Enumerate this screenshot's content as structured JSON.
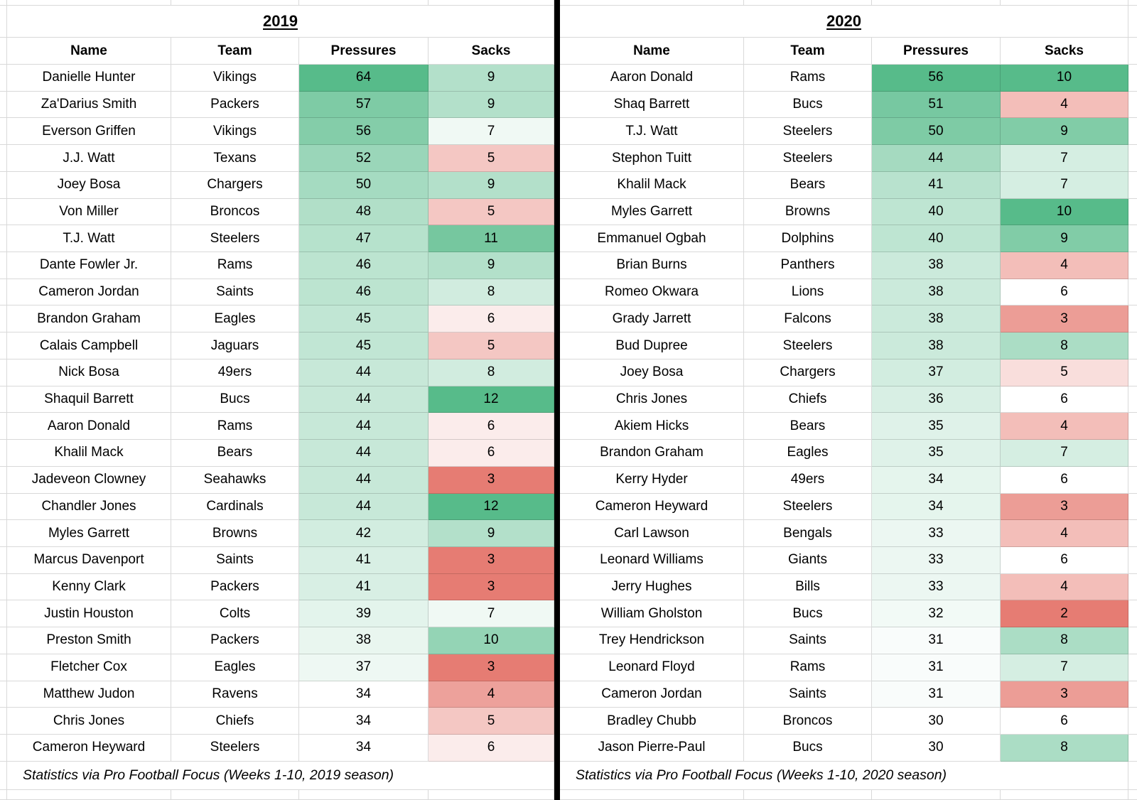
{
  "colors": {
    "scale_green": "#57BB8A",
    "scale_red": "#E67C73",
    "scale_neutral": "#FFFFFF",
    "gridline": "#D9D9D9",
    "divider": "#000000",
    "text": "#000000",
    "background": "#FFFFFF"
  },
  "tables": {
    "left": {
      "title": "2019",
      "columns": [
        "Name",
        "Team",
        "Pressures",
        "Sacks"
      ],
      "footnote": "Statistics via Pro Football Focus (Weeks 1-10, 2019 season)",
      "scales": {
        "pressures": {
          "type": "two_color",
          "min": 34,
          "max": 64
        },
        "sacks": {
          "type": "three_color",
          "min": 3,
          "mid": 6.5,
          "max": 12
        }
      },
      "rows": [
        {
          "name": "Danielle Hunter",
          "team": "Vikings",
          "pressures": 64,
          "sacks": 9
        },
        {
          "name": "Za'Darius Smith",
          "team": "Packers",
          "pressures": 57,
          "sacks": 9
        },
        {
          "name": "Everson Griffen",
          "team": "Vikings",
          "pressures": 56,
          "sacks": 7
        },
        {
          "name": "J.J. Watt",
          "team": "Texans",
          "pressures": 52,
          "sacks": 5
        },
        {
          "name": "Joey Bosa",
          "team": "Chargers",
          "pressures": 50,
          "sacks": 9
        },
        {
          "name": "Von Miller",
          "team": "Broncos",
          "pressures": 48,
          "sacks": 5
        },
        {
          "name": "T.J. Watt",
          "team": "Steelers",
          "pressures": 47,
          "sacks": 11
        },
        {
          "name": "Dante Fowler Jr.",
          "team": "Rams",
          "pressures": 46,
          "sacks": 9
        },
        {
          "name": "Cameron Jordan",
          "team": "Saints",
          "pressures": 46,
          "sacks": 8
        },
        {
          "name": "Brandon Graham",
          "team": "Eagles",
          "pressures": 45,
          "sacks": 6
        },
        {
          "name": "Calais Campbell",
          "team": "Jaguars",
          "pressures": 45,
          "sacks": 5
        },
        {
          "name": "Nick Bosa",
          "team": "49ers",
          "pressures": 44,
          "sacks": 8
        },
        {
          "name": "Shaquil Barrett",
          "team": "Bucs",
          "pressures": 44,
          "sacks": 12
        },
        {
          "name": "Aaron Donald",
          "team": "Rams",
          "pressures": 44,
          "sacks": 6
        },
        {
          "name": "Khalil Mack",
          "team": "Bears",
          "pressures": 44,
          "sacks": 6
        },
        {
          "name": "Jadeveon Clowney",
          "team": "Seahawks",
          "pressures": 44,
          "sacks": 3
        },
        {
          "name": "Chandler Jones",
          "team": "Cardinals",
          "pressures": 44,
          "sacks": 12
        },
        {
          "name": "Myles Garrett",
          "team": "Browns",
          "pressures": 42,
          "sacks": 9
        },
        {
          "name": "Marcus Davenport",
          "team": "Saints",
          "pressures": 41,
          "sacks": 3
        },
        {
          "name": "Kenny Clark",
          "team": "Packers",
          "pressures": 41,
          "sacks": 3
        },
        {
          "name": "Justin Houston",
          "team": "Colts",
          "pressures": 39,
          "sacks": 7
        },
        {
          "name": "Preston Smith",
          "team": "Packers",
          "pressures": 38,
          "sacks": 10
        },
        {
          "name": "Fletcher Cox",
          "team": "Eagles",
          "pressures": 37,
          "sacks": 3
        },
        {
          "name": "Matthew Judon",
          "team": "Ravens",
          "pressures": 34,
          "sacks": 4
        },
        {
          "name": "Chris Jones",
          "team": "Chiefs",
          "pressures": 34,
          "sacks": 5
        },
        {
          "name": "Cameron Heyward",
          "team": "Steelers",
          "pressures": 34,
          "sacks": 6
        }
      ]
    },
    "right": {
      "title": "2020",
      "columns": [
        "Name",
        "Team",
        "Pressures",
        "Sacks"
      ],
      "footnote": "Statistics via Pro Football Focus (Weeks 1-10, 2020 season)",
      "scales": {
        "pressures": {
          "type": "two_color",
          "min": 30,
          "max": 56
        },
        "sacks": {
          "type": "three_color",
          "min": 2,
          "mid": 6,
          "max": 10
        }
      },
      "rows": [
        {
          "name": "Aaron Donald",
          "team": "Rams",
          "pressures": 56,
          "sacks": 10
        },
        {
          "name": "Shaq Barrett",
          "team": "Bucs",
          "pressures": 51,
          "sacks": 4
        },
        {
          "name": "T.J. Watt",
          "team": "Steelers",
          "pressures": 50,
          "sacks": 9
        },
        {
          "name": "Stephon Tuitt",
          "team": "Steelers",
          "pressures": 44,
          "sacks": 7
        },
        {
          "name": "Khalil Mack",
          "team": "Bears",
          "pressures": 41,
          "sacks": 7
        },
        {
          "name": "Myles Garrett",
          "team": "Browns",
          "pressures": 40,
          "sacks": 10
        },
        {
          "name": "Emmanuel Ogbah",
          "team": "Dolphins",
          "pressures": 40,
          "sacks": 9
        },
        {
          "name": "Brian Burns",
          "team": "Panthers",
          "pressures": 38,
          "sacks": 4
        },
        {
          "name": "Romeo Okwara",
          "team": "Lions",
          "pressures": 38,
          "sacks": 6
        },
        {
          "name": "Grady Jarrett",
          "team": "Falcons",
          "pressures": 38,
          "sacks": 3
        },
        {
          "name": "Bud Dupree",
          "team": "Steelers",
          "pressures": 38,
          "sacks": 8
        },
        {
          "name": "Joey Bosa",
          "team": "Chargers",
          "pressures": 37,
          "sacks": 5
        },
        {
          "name": "Chris Jones",
          "team": "Chiefs",
          "pressures": 36,
          "sacks": 6
        },
        {
          "name": "Akiem Hicks",
          "team": "Bears",
          "pressures": 35,
          "sacks": 4
        },
        {
          "name": "Brandon Graham",
          "team": "Eagles",
          "pressures": 35,
          "sacks": 7
        },
        {
          "name": "Kerry Hyder",
          "team": "49ers",
          "pressures": 34,
          "sacks": 6
        },
        {
          "name": "Cameron Heyward",
          "team": "Steelers",
          "pressures": 34,
          "sacks": 3
        },
        {
          "name": "Carl Lawson",
          "team": "Bengals",
          "pressures": 33,
          "sacks": 4
        },
        {
          "name": "Leonard Williams",
          "team": "Giants",
          "pressures": 33,
          "sacks": 6
        },
        {
          "name": "Jerry Hughes",
          "team": "Bills",
          "pressures": 33,
          "sacks": 4
        },
        {
          "name": "William Gholston",
          "team": "Bucs",
          "pressures": 32,
          "sacks": 2
        },
        {
          "name": "Trey Hendrickson",
          "team": "Saints",
          "pressures": 31,
          "sacks": 8
        },
        {
          "name": "Leonard Floyd",
          "team": "Rams",
          "pressures": 31,
          "sacks": 7
        },
        {
          "name": "Cameron Jordan",
          "team": "Saints",
          "pressures": 31,
          "sacks": 3
        },
        {
          "name": "Bradley Chubb",
          "team": "Broncos",
          "pressures": 30,
          "sacks": 6
        },
        {
          "name": "Jason Pierre-Paul",
          "team": "Bucs",
          "pressures": 30,
          "sacks": 8
        }
      ]
    }
  }
}
